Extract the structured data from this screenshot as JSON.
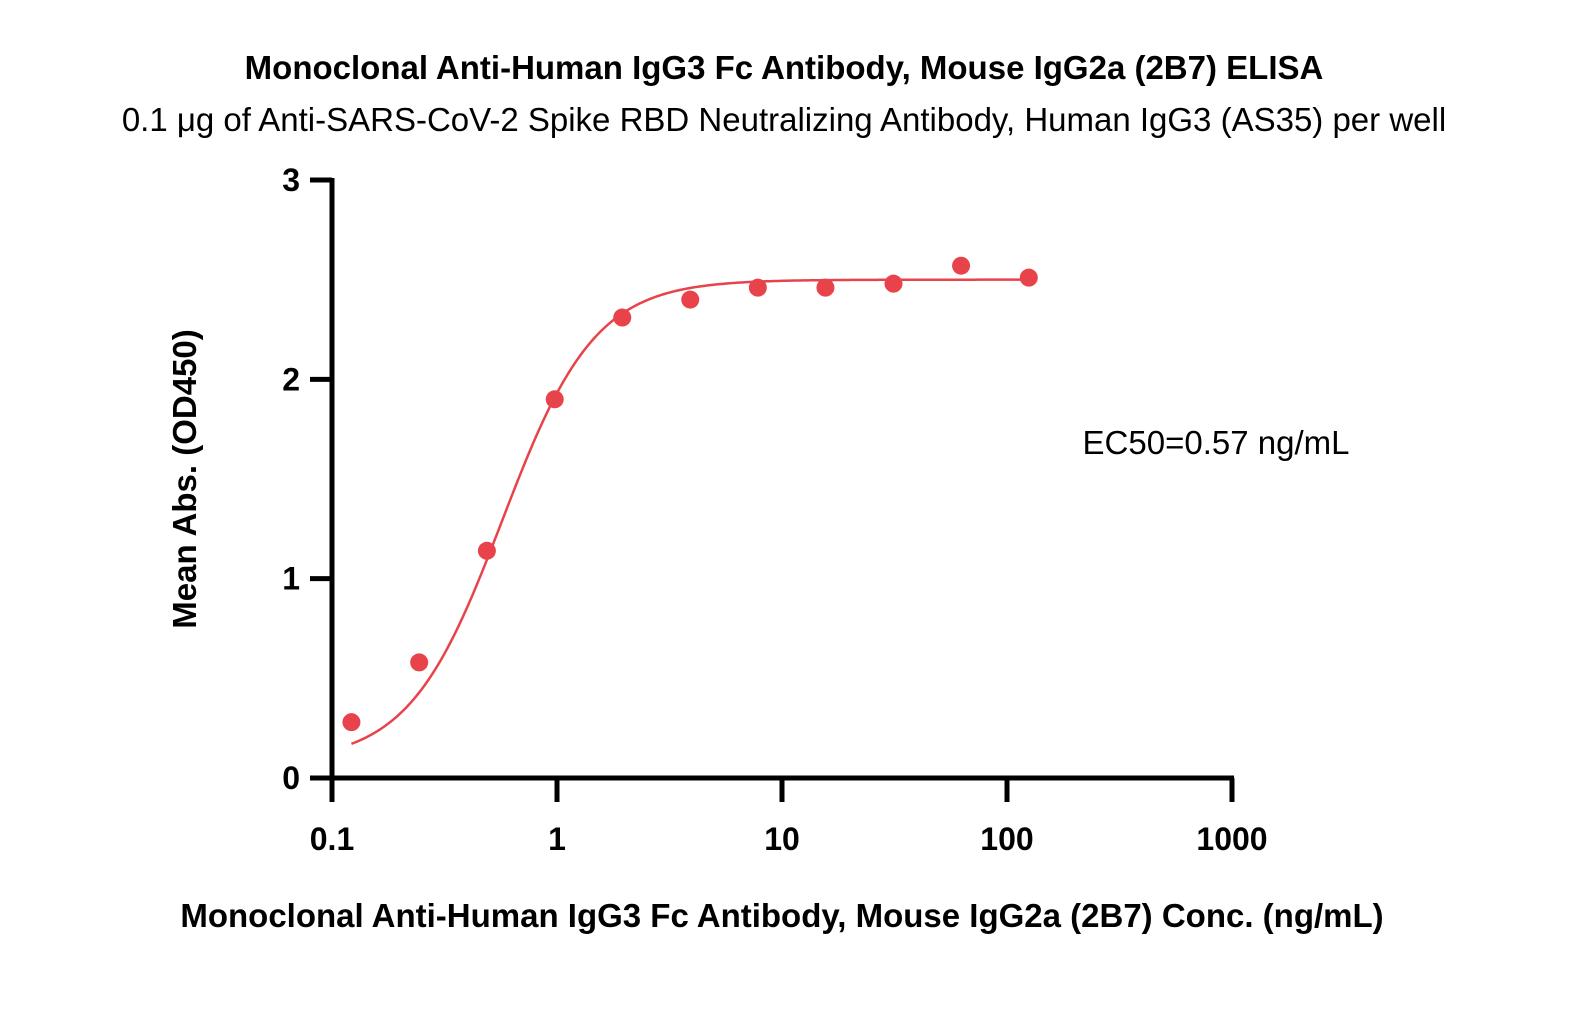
{
  "chart_data": {
    "type": "scatter",
    "title": "Monoclonal Anti-Human IgG3 Fc Antibody, Mouse IgG2a (2B7) ELISA",
    "subtitle": "0.1 μg of Anti-SARS-CoV-2 Spike RBD Neutralizing Antibody, Human IgG3 (AS35) per well",
    "xlabel": "Monoclonal Anti-Human IgG3 Fc Antibody, Mouse IgG2a (2B7) Conc. (ng/mL)",
    "ylabel": "Mean Abs. (OD450)",
    "xscale": "log",
    "xlim": [
      0.1,
      1000
    ],
    "ylim": [
      0,
      3
    ],
    "xticks": [
      "0.1",
      "1",
      "10",
      "100",
      "1000"
    ],
    "yticks": [
      "0",
      "1",
      "2",
      "3"
    ],
    "grid": false,
    "color": "#e8434a",
    "series": [
      {
        "x": [
          0.122,
          0.244,
          0.488,
          0.977,
          1.95,
          3.91,
          7.81,
          15.6,
          31.3,
          62.5,
          125
        ],
        "y": [
          0.28,
          0.58,
          1.14,
          1.9,
          2.31,
          2.4,
          2.46,
          2.46,
          2.48,
          2.57,
          2.51
        ]
      }
    ],
    "fit": {
      "model": "4PL",
      "bottom": 0.08,
      "top": 2.5,
      "ec50": 0.57,
      "hill": 2.1
    },
    "annotation": "EC50=0.57 ng/mL"
  }
}
